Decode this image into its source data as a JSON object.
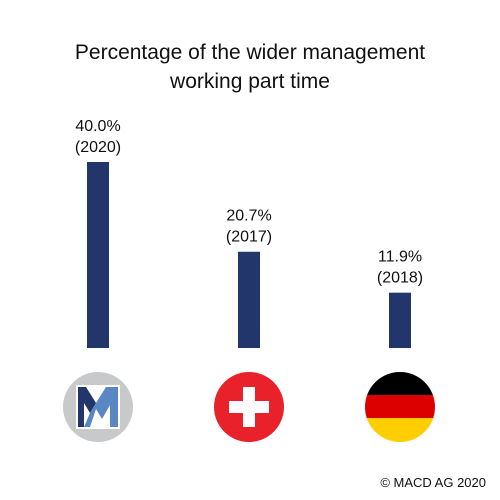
{
  "chart_data": {
    "type": "bar",
    "title_lines": [
      "Percentage of the wider management",
      "working part time"
    ],
    "categories": [
      "MACD",
      "Switzerland",
      "Germany"
    ],
    "series": [
      {
        "values": [
          40.0,
          20.7,
          11.9
        ],
        "value_labels": [
          "40.0%",
          "20.7%",
          "11.9%"
        ],
        "years": [
          "(2020)",
          "(2017)",
          "(2018)"
        ]
      }
    ],
    "ylim": [
      0,
      40
    ],
    "grid": false,
    "legend": "none",
    "xlabel": "",
    "ylabel": ""
  },
  "category_icons": [
    "macd-logo-icon",
    "swiss-flag-icon",
    "german-flag-icon"
  ],
  "colors": {
    "bar": "#23366b",
    "logo_bg": "#c8c9cb",
    "logo_dark": "#23366b",
    "logo_light": "#5a86c4",
    "swiss_red": "#e8212a",
    "german_black": "#000000",
    "german_red": "#dd0000",
    "german_gold": "#ffce00"
  },
  "footer": {
    "copyright": "© MACD AG 2020"
  }
}
